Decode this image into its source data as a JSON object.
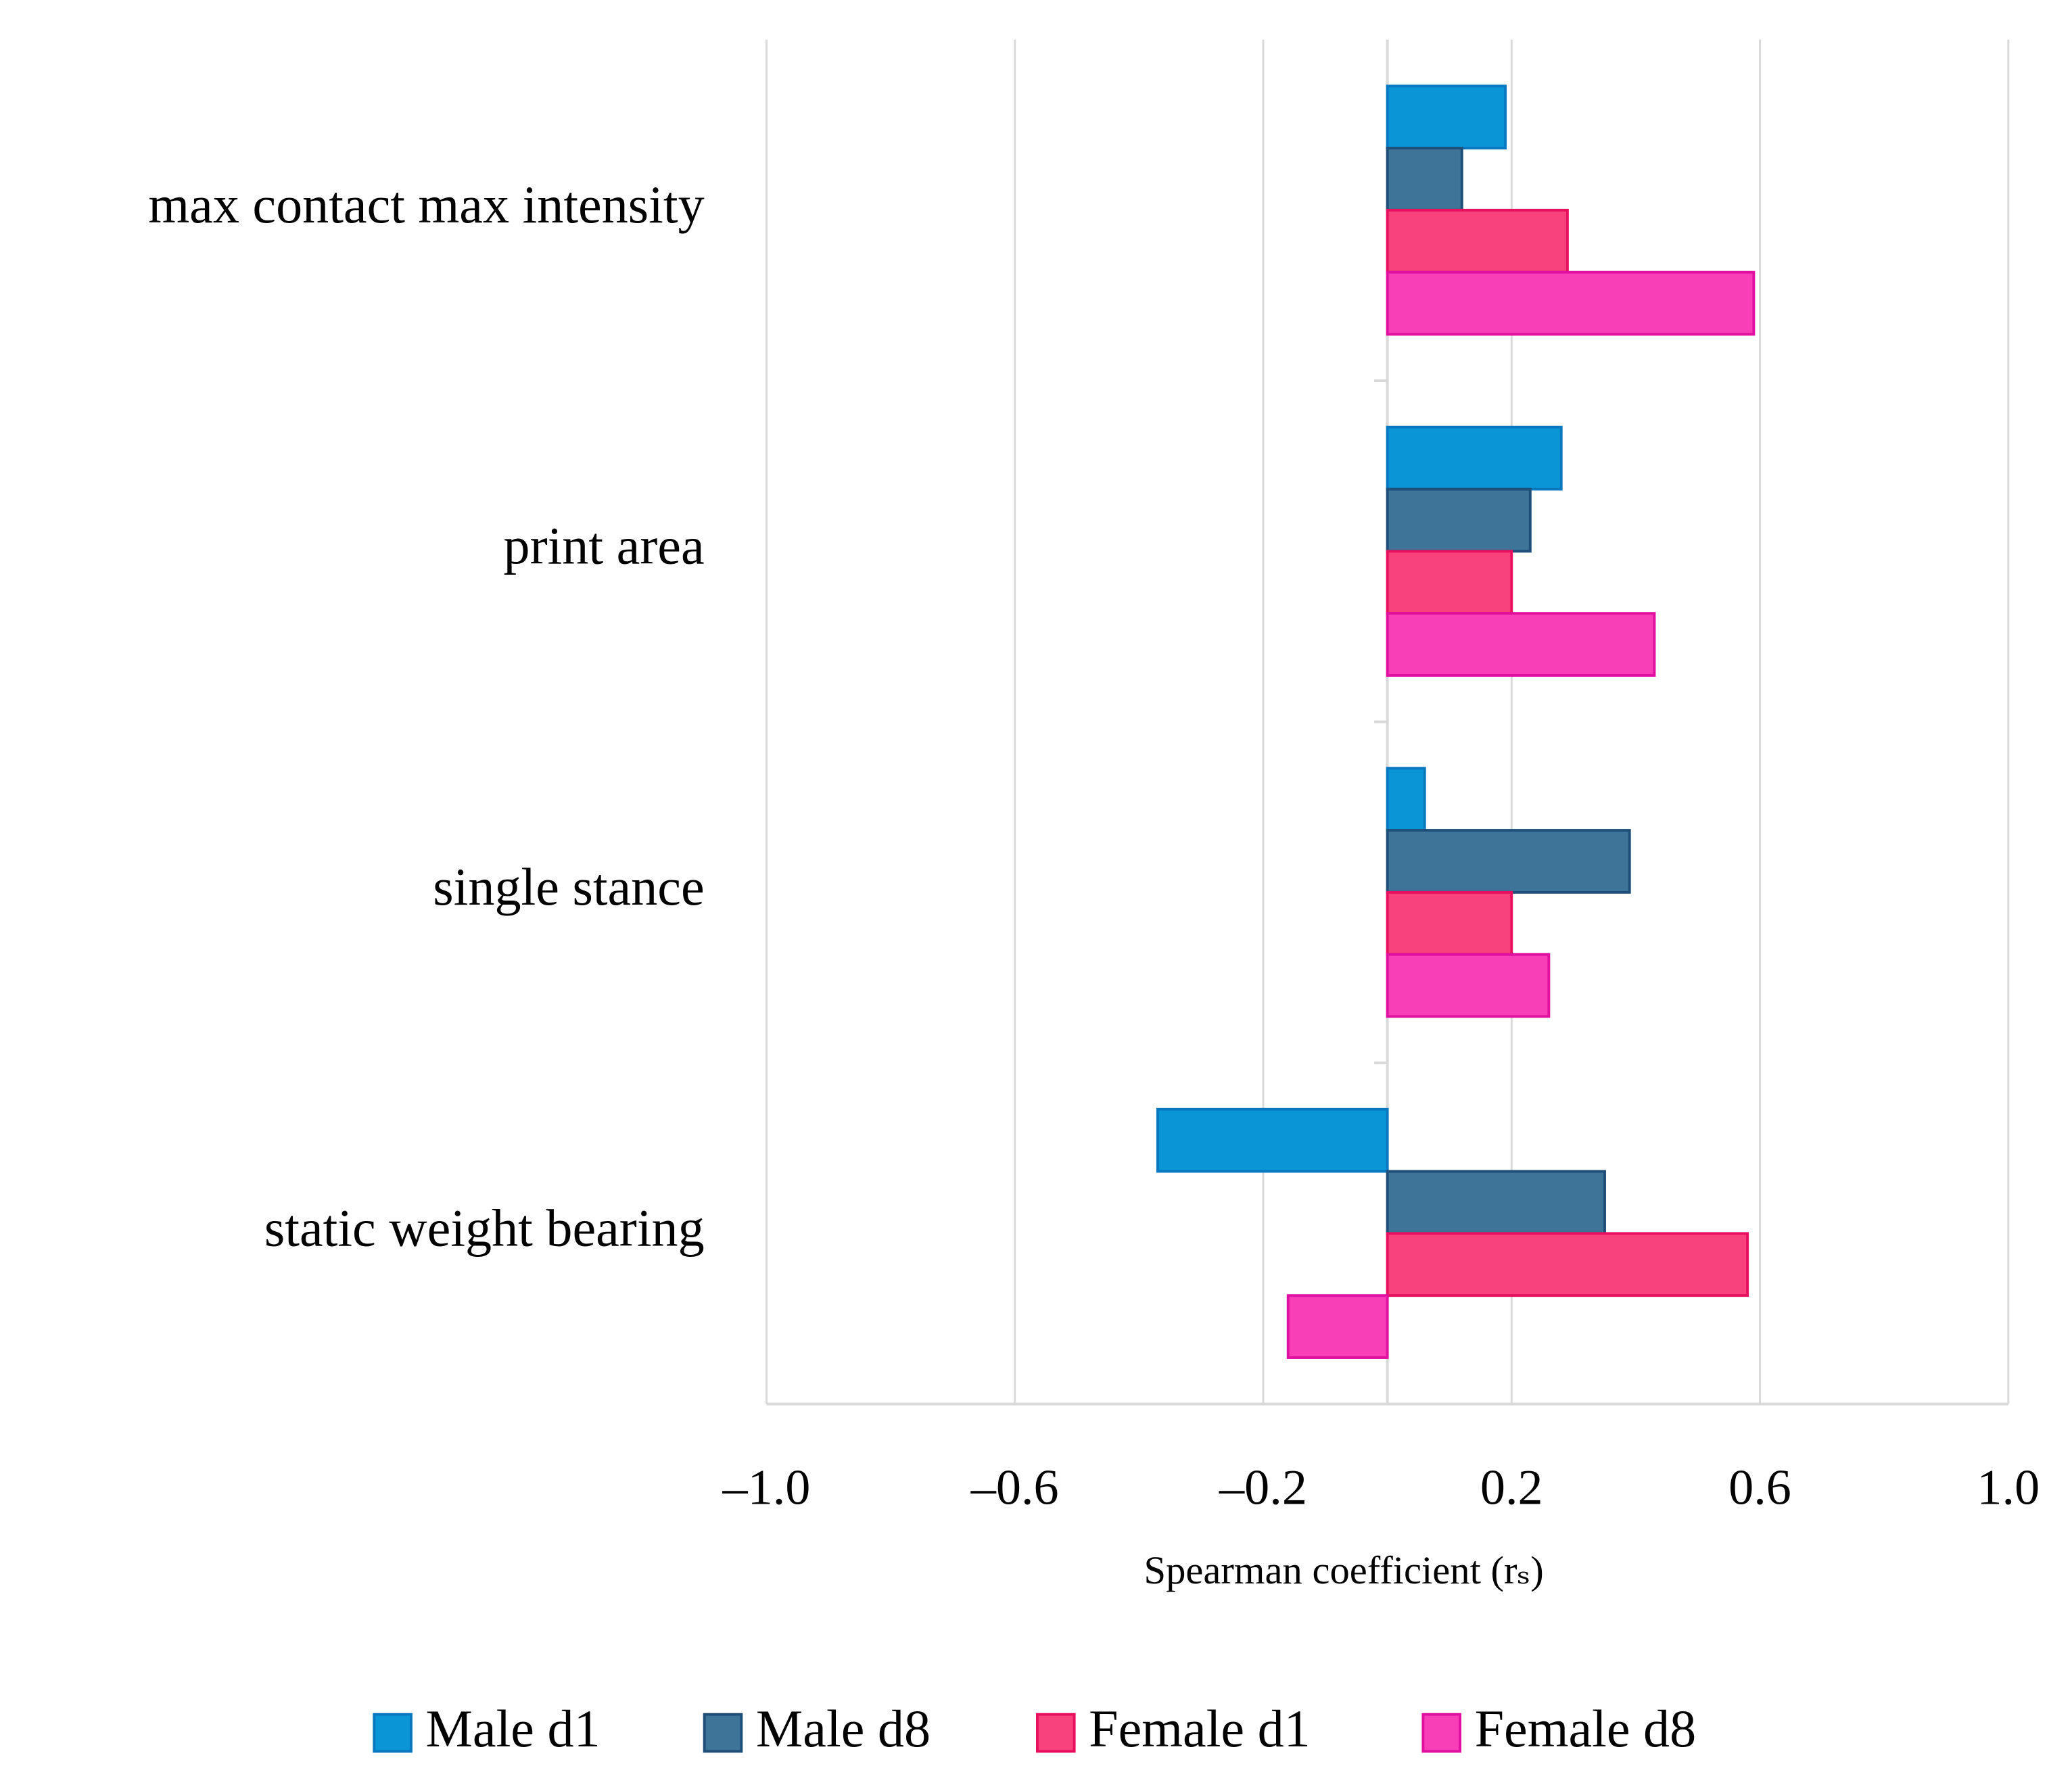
{
  "chart_data": {
    "type": "barh",
    "xlabel": "Spearman coefficient (rₛ)",
    "categories": [
      "max contact max intensity",
      "print area",
      "single stance",
      "static weight bearing"
    ],
    "series": [
      {
        "name": "Male d1",
        "color": "#0a96d6",
        "values": [
          0.19,
          0.28,
          0.06,
          -0.37
        ]
      },
      {
        "name": "Male d8",
        "color": "#3f7499",
        "values": [
          0.12,
          0.23,
          0.39,
          0.35
        ]
      },
      {
        "name": "Female d1",
        "color": "#f8427e",
        "values": [
          0.29,
          0.2,
          0.2,
          0.58
        ]
      },
      {
        "name": "Female d8",
        "color": "#f83fb8",
        "values": [
          0.59,
          0.43,
          0.26,
          -0.16
        ]
      }
    ],
    "xlim": [
      -1.0,
      1.0
    ],
    "xticks": [
      {
        "value": -1.0,
        "label": "–1.0"
      },
      {
        "value": -0.6,
        "label": "–0.6"
      },
      {
        "value": -0.2,
        "label": "–0.2"
      },
      {
        "value": 0.2,
        "label": "0.2"
      },
      {
        "value": 0.6,
        "label": "0.6"
      },
      {
        "value": 1.0,
        "label": "1.0"
      }
    ],
    "grid": true,
    "legend": "bottom"
  }
}
